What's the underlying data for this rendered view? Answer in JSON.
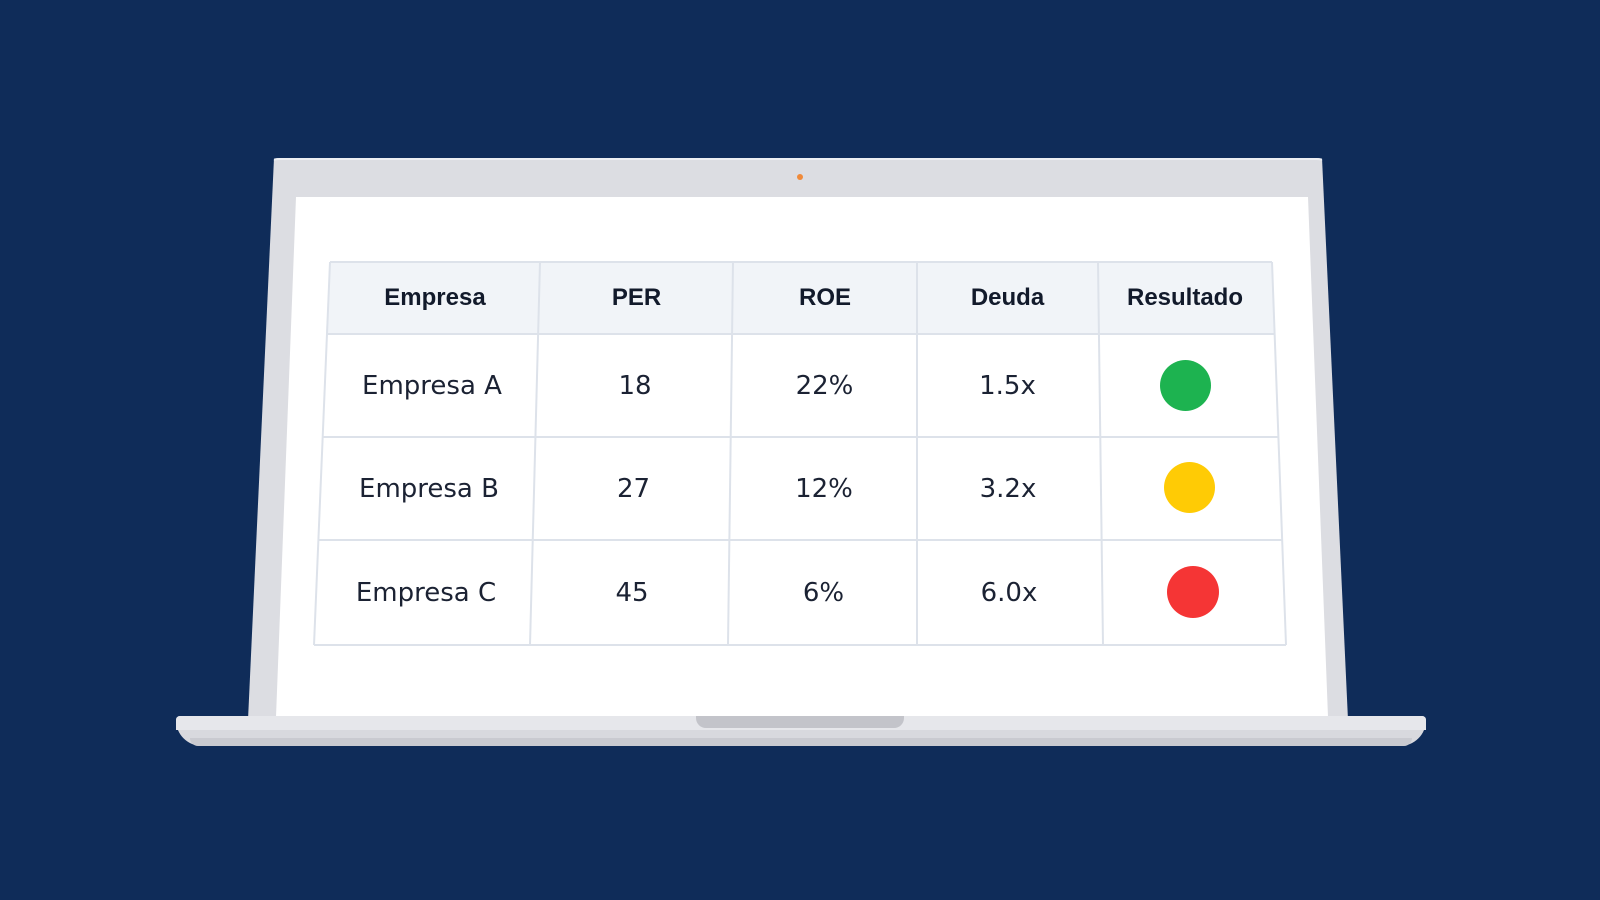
{
  "table": {
    "headers": [
      "Empresa",
      "PER",
      "ROE",
      "Deuda",
      "Resultado"
    ],
    "rows": [
      {
        "empresa": "Empresa A",
        "per": "18",
        "roe": "22%",
        "deuda": "1.5x",
        "resultado_color": "#1db350",
        "resultado_status": "green"
      },
      {
        "empresa": "Empresa B",
        "per": "27",
        "roe": "12%",
        "deuda": "3.2x",
        "resultado_color": "#ffcb05",
        "resultado_status": "yellow"
      },
      {
        "empresa": "Empresa C",
        "per": "45",
        "roe": "6%",
        "deuda": "6.0x",
        "resultado_color": "#f53535",
        "resultado_status": "red"
      }
    ]
  },
  "colors": {
    "background": "#0f2c59",
    "laptop_frame": "#dcdde2",
    "screen": "#ffffff",
    "header_bg": "#f1f4f8",
    "grid_line": "#dde2ea",
    "camera": "#f08a3a"
  }
}
